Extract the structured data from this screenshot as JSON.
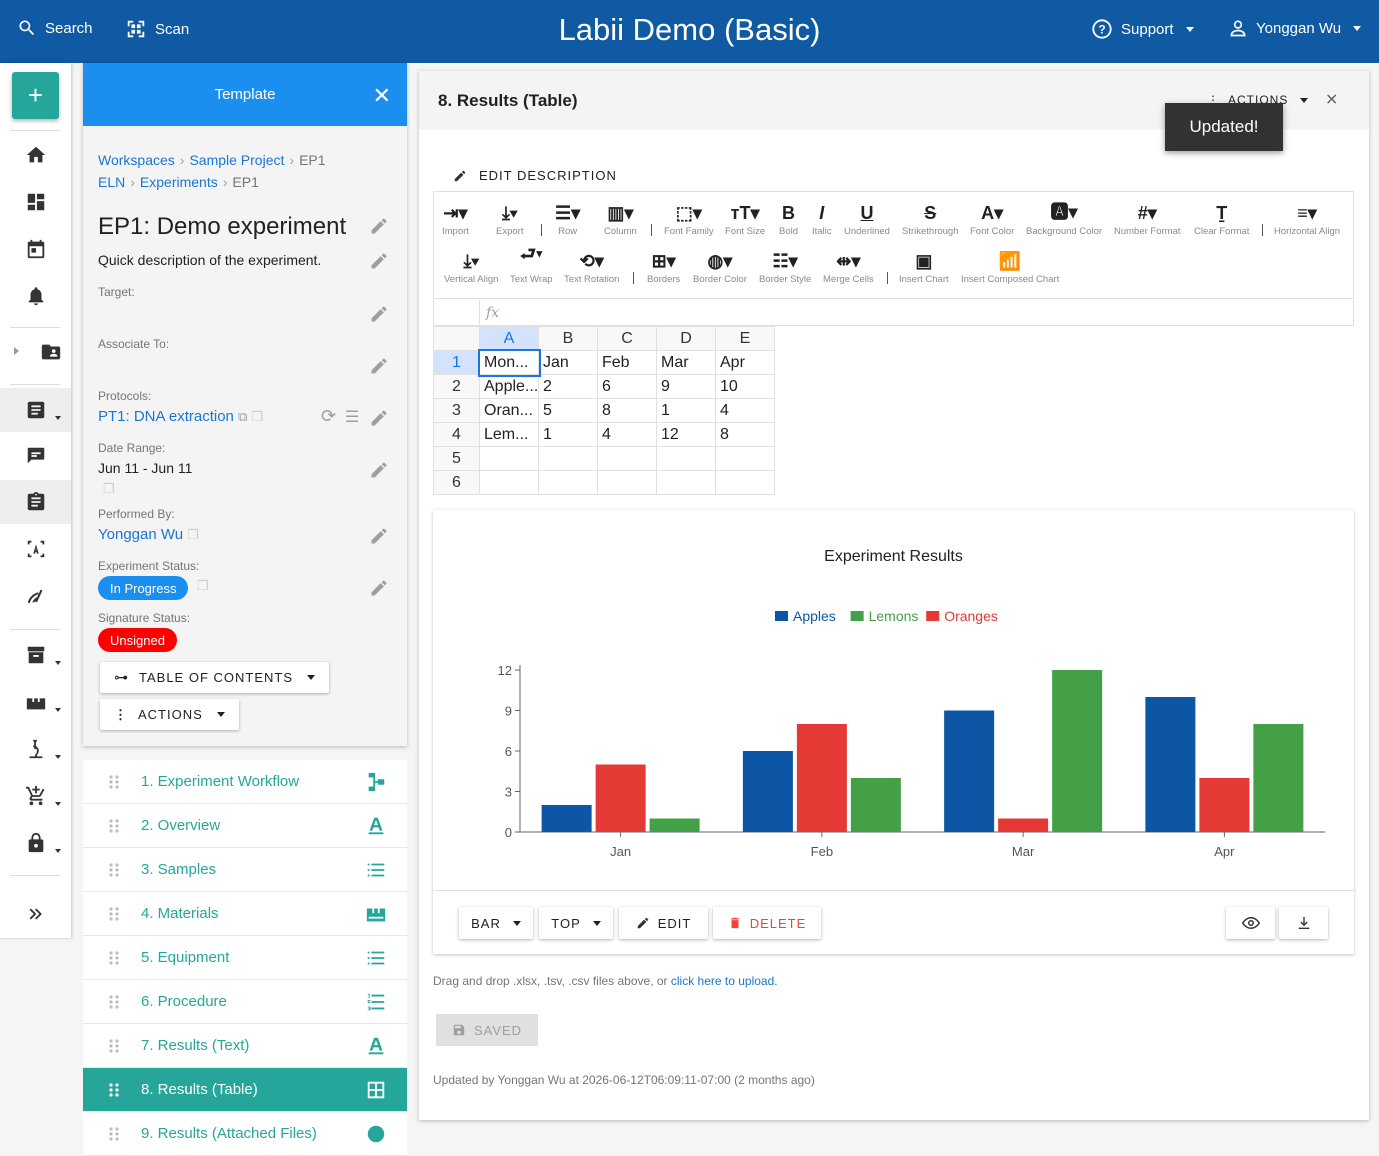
{
  "topbar": {
    "search_label": "Search",
    "scan_label": "Scan",
    "title": "Labii Demo (Basic)",
    "support_label": "Support",
    "user_label": "Yonggan Wu",
    "color": "#0f5aa3"
  },
  "template_panel": {
    "header": "Template",
    "crumb1": [
      "Workspaces",
      "Sample Project",
      "EP1"
    ],
    "crumb2": [
      "ELN",
      "Experiments",
      "EP1"
    ],
    "title": "EP1: Demo experiment",
    "description": "Quick description of the experiment.",
    "target_label": "Target:",
    "associate_label": "Associate To:",
    "protocols_label": "Protocols:",
    "protocol_value": "PT1: DNA extraction",
    "date_label": "Date Range:",
    "date_value": "Jun 11 - Jun 11",
    "performed_label": "Performed By:",
    "performed_value": "Yonggan Wu",
    "status_label": "Experiment Status:",
    "status_value": "In Progress",
    "signature_label": "Signature Status:",
    "signature_value": "Unsigned",
    "toc_label": "TABLE OF CONTENTS",
    "actions_label": "ACTIONS"
  },
  "sections": [
    {
      "label": "1. Experiment Workflow",
      "icon": "workflow-icon"
    },
    {
      "label": "2. Overview",
      "icon": "text-icon"
    },
    {
      "label": "3. Samples",
      "icon": "list-icon"
    },
    {
      "label": "4. Materials",
      "icon": "materials-icon"
    },
    {
      "label": "5. Equipment",
      "icon": "list-icon"
    },
    {
      "label": "6. Procedure",
      "icon": "numbered-list-icon"
    },
    {
      "label": "7. Results (Text)",
      "icon": "text-icon"
    },
    {
      "label": "8. Results (Table)",
      "icon": "table-icon"
    },
    {
      "label": "9. Results (Attached Files)",
      "icon": "file-icon"
    }
  ],
  "main": {
    "title": "8. Results (Table)",
    "actions_label": "ACTIONS",
    "toast": "Updated!",
    "edit_description": "EDIT DESCRIPTION",
    "toolbar_row1": [
      "Import",
      "Export",
      "Row",
      "Column",
      "Font Family",
      "Font Size",
      "Bold",
      "Italic",
      "Underlined",
      "Strikethrough",
      "Font Color",
      "Background Color",
      "Number Format",
      "Clear Format",
      "Horizontal Align"
    ],
    "toolbar_row2": [
      "Vertical Align",
      "Text Wrap",
      "Text Rotation",
      "Borders",
      "Border Color",
      "Border Style",
      "Merge Cells",
      "Insert Chart",
      "Insert Composed Chart"
    ],
    "fx_label": "fx",
    "columns": [
      "A",
      "B",
      "C",
      "D",
      "E"
    ],
    "rows": [
      [
        "Mon...",
        "Jan",
        "Feb",
        "Mar",
        "Apr"
      ],
      [
        "Apple...",
        "2",
        "6",
        "9",
        "10"
      ],
      [
        "Oran...",
        "5",
        "8",
        "1",
        "4"
      ],
      [
        "Lem...",
        "1",
        "4",
        "12",
        "8"
      ],
      [
        "",
        "",
        "",
        "",
        ""
      ],
      [
        "",
        "",
        "",
        "",
        ""
      ]
    ],
    "row_numbers": [
      "1",
      "2",
      "3",
      "4",
      "5",
      "6"
    ],
    "chart_buttons": {
      "type": "BAR",
      "legend": "TOP",
      "edit": "EDIT",
      "delete": "DELETE"
    },
    "drop_note": "Drag and drop .xlsx, .tsv, .csv files above, or ",
    "drop_link": "click here to upload.",
    "saved_label": "SAVED",
    "updated_text": "Updated by Yonggan Wu at 2026-06-12T06:09:11-07:00 (2 months ago)"
  },
  "chart_data": {
    "type": "bar",
    "title": "Experiment Results",
    "categories": [
      "Jan",
      "Feb",
      "Mar",
      "Apr"
    ],
    "series": [
      {
        "name": "Apples",
        "values": [
          2,
          6,
          9,
          10
        ],
        "color": "#0d56a6"
      },
      {
        "name": "Oranges",
        "values": [
          5,
          8,
          1,
          4
        ],
        "color": "#e53935"
      },
      {
        "name": "Lemons",
        "values": [
          1,
          4,
          12,
          8
        ],
        "color": "#43a047"
      }
    ],
    "legend_order": [
      "Apples",
      "Lemons",
      "Oranges"
    ],
    "legend_position": "top",
    "yticks": [
      0,
      3,
      6,
      9,
      12
    ],
    "ylim": [
      0,
      12
    ]
  }
}
